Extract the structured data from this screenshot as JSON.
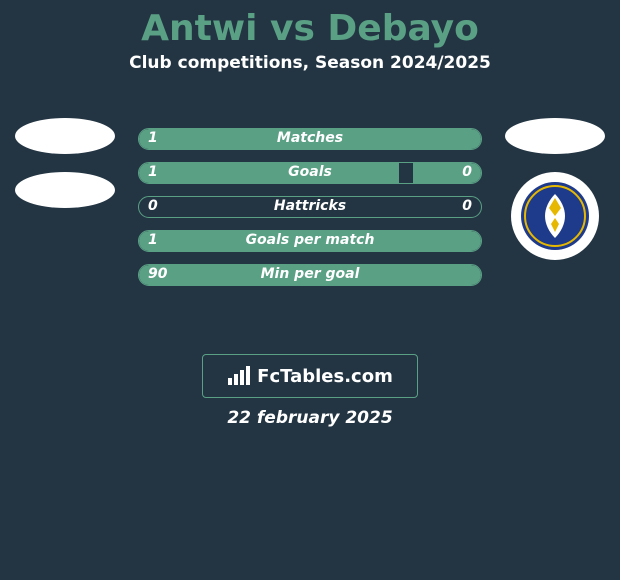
{
  "title": "Antwi vs Debayo",
  "subtitle": "Club competitions, Season 2024/2025",
  "date": "22 february 2025",
  "watermark": "FcTables.com",
  "colors": {
    "background": "#233543",
    "accent": "#5aa085",
    "text": "#ffffff",
    "crest_blue": "#1e3a8a",
    "crest_gold": "#e6b800"
  },
  "left_player": {
    "emblem_count": 2
  },
  "right_player": {
    "has_crest": true
  },
  "stats": [
    {
      "label": "Matches",
      "left_val": "1",
      "right_val": "",
      "left_pct": 100,
      "right_pct": 0
    },
    {
      "label": "Goals",
      "left_val": "1",
      "right_val": "0",
      "left_pct": 76,
      "right_pct": 20
    },
    {
      "label": "Hattricks",
      "left_val": "0",
      "right_val": "0",
      "left_pct": 0,
      "right_pct": 0
    },
    {
      "label": "Goals per match",
      "left_val": "1",
      "right_val": "",
      "left_pct": 100,
      "right_pct": 0
    },
    {
      "label": "Min per goal",
      "left_val": "90",
      "right_val": "",
      "left_pct": 100,
      "right_pct": 0
    }
  ]
}
